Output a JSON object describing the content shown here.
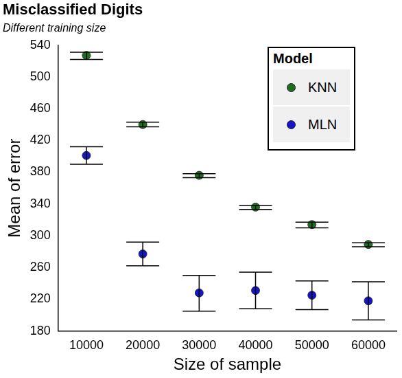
{
  "chart_data": {
    "type": "scatter",
    "title": "Misclassified Digits",
    "subtitle": "Different training size",
    "x_label": "Size of sample",
    "y_label": "Mean of error",
    "categories": [
      "10000",
      "20000",
      "30000",
      "40000",
      "50000",
      "60000"
    ],
    "series": [
      {
        "name": "KNN",
        "color": "#1f6e1f",
        "marker": "circle",
        "values": [
          527,
          440,
          376,
          336,
          314,
          289
        ],
        "lower": [
          522,
          437,
          373,
          333,
          310,
          286
        ],
        "upper": [
          531,
          443,
          378,
          338,
          317,
          291
        ]
      },
      {
        "name": "MLN",
        "color": "#1515c8",
        "marker": "circle",
        "values": [
          401,
          277,
          228,
          231,
          225,
          218
        ],
        "lower": [
          390,
          262,
          205,
          208,
          207,
          194
        ],
        "upper": [
          412,
          292,
          250,
          254,
          243,
          242
        ]
      }
    ],
    "legend_title": "Model",
    "ylim": [
      180,
      540
    ],
    "yticks": [
      180,
      220,
      260,
      300,
      340,
      380,
      420,
      460,
      500,
      540
    ],
    "grid": false,
    "legend": "top-right"
  }
}
